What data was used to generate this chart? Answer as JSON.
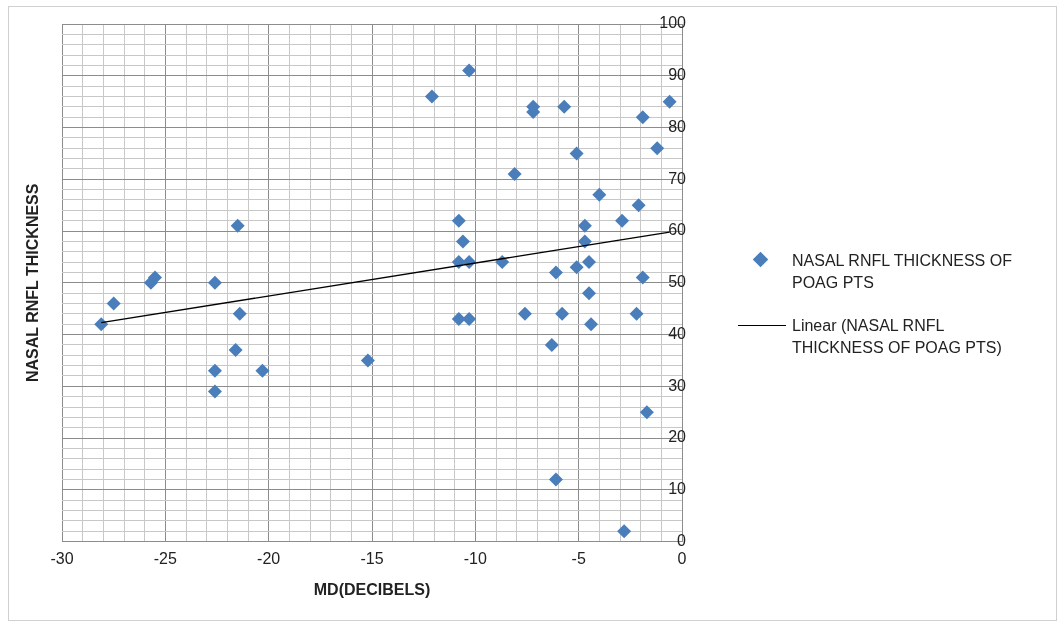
{
  "chart_data": {
    "type": "scatter",
    "xlabel": "MD(DECIBELS)",
    "ylabel": "NASAL RNFL THICKNESS",
    "xlim": [
      -30,
      0
    ],
    "ylim": [
      0,
      100
    ],
    "xticks": [
      -30,
      {
        "value": -29,
        "label": null
      },
      {
        "value": -28,
        "label": null
      },
      {
        "value": -27,
        "label": null
      },
      {
        "value": -26,
        "label": null
      },
      -25,
      {
        "value": -24,
        "label": null
      },
      {
        "value": -23,
        "label": null
      },
      {
        "value": -22,
        "label": null
      },
      {
        "value": -21,
        "label": null
      },
      -20,
      {
        "value": -19,
        "label": null
      },
      {
        "value": -18,
        "label": null
      },
      {
        "value": -17,
        "label": null
      },
      {
        "value": -16,
        "label": null
      },
      -15,
      {
        "value": -14,
        "label": null
      },
      {
        "value": -13,
        "label": null
      },
      {
        "value": -12,
        "label": null
      },
      {
        "value": -11,
        "label": null
      },
      -10,
      {
        "value": -9,
        "label": null
      },
      {
        "value": -8,
        "label": null
      },
      {
        "value": -7,
        "label": null
      },
      {
        "value": -6,
        "label": null
      },
      -5,
      {
        "value": -4,
        "label": null
      },
      {
        "value": -3,
        "label": null
      },
      {
        "value": -2,
        "label": null
      },
      {
        "value": -1,
        "label": null
      },
      0
    ],
    "yticks": [
      0,
      {
        "value": 2,
        "label": null
      },
      {
        "value": 4,
        "label": null
      },
      {
        "value": 6,
        "label": null
      },
      {
        "value": 8,
        "label": null
      },
      10,
      {
        "value": 12,
        "label": null
      },
      {
        "value": 14,
        "label": null
      },
      {
        "value": 16,
        "label": null
      },
      {
        "value": 18,
        "label": null
      },
      20,
      {
        "value": 22,
        "label": null
      },
      {
        "value": 24,
        "label": null
      },
      {
        "value": 26,
        "label": null
      },
      {
        "value": 28,
        "label": null
      },
      30,
      {
        "value": 32,
        "label": null
      },
      {
        "value": 34,
        "label": null
      },
      {
        "value": 36,
        "label": null
      },
      {
        "value": 38,
        "label": null
      },
      40,
      {
        "value": 42,
        "label": null
      },
      {
        "value": 44,
        "label": null
      },
      {
        "value": 46,
        "label": null
      },
      {
        "value": 48,
        "label": null
      },
      50,
      {
        "value": 52,
        "label": null
      },
      {
        "value": 54,
        "label": null
      },
      {
        "value": 56,
        "label": null
      },
      {
        "value": 58,
        "label": null
      },
      60,
      {
        "value": 62,
        "label": null
      },
      {
        "value": 64,
        "label": null
      },
      {
        "value": 66,
        "label": null
      },
      {
        "value": 68,
        "label": null
      },
      70,
      {
        "value": 72,
        "label": null
      },
      {
        "value": 74,
        "label": null
      },
      {
        "value": 76,
        "label": null
      },
      {
        "value": 78,
        "label": null
      },
      80,
      {
        "value": 82,
        "label": null
      },
      {
        "value": 84,
        "label": null
      },
      {
        "value": 86,
        "label": null
      },
      {
        "value": 88,
        "label": null
      },
      90,
      {
        "value": 92,
        "label": null
      },
      {
        "value": 94,
        "label": null
      },
      {
        "value": 96,
        "label": null
      },
      {
        "value": 98,
        "label": null
      },
      100
    ],
    "grid": true,
    "legend": "right",
    "series": [
      {
        "name": "NASAL RNFL THICKNESS OF POAG PTS",
        "color": "#4a7ebb",
        "marker": "diamond",
        "x": [
          -28.1,
          -27.5,
          -25.7,
          -25.5,
          -22.6,
          -22.6,
          -22.6,
          -21.5,
          -21.4,
          -21.6,
          -20.3,
          -15.2,
          -12.1,
          -10.3,
          -10.8,
          -10.6,
          -10.8,
          -10.3,
          -10.8,
          -10.3,
          -8.7,
          -8.1,
          -7.2,
          -7.2,
          -7.6,
          -5.7,
          -5.1,
          -6.1,
          -6.3,
          -6.1,
          -5.8,
          -5.1,
          -4.7,
          -4.7,
          -4.5,
          -4.5,
          -4.4,
          -4.0,
          -2.9,
          -2.1,
          -1.9,
          -1.9,
          -2.2,
          -1.7,
          -2.8,
          -1.2,
          -0.6
        ],
        "values": [
          42,
          46,
          50,
          51,
          50,
          33,
          29,
          61,
          44,
          37,
          33,
          35,
          86,
          91,
          62,
          58,
          54,
          54,
          43,
          43,
          54,
          71,
          84,
          83,
          44,
          84,
          75,
          52,
          38,
          12,
          44,
          53,
          61,
          58,
          54,
          48,
          42,
          67,
          62,
          65,
          82,
          51,
          44,
          25,
          2,
          76,
          85
        ]
      },
      {
        "name": "Linear (NASAL RNFL THICKNESS OF POAG PTS)",
        "type": "line",
        "marker": "none",
        "color": "#000000",
        "x": [
          -28.1,
          -0.6
        ],
        "values": [
          42.3,
          59.8
        ]
      }
    ]
  }
}
